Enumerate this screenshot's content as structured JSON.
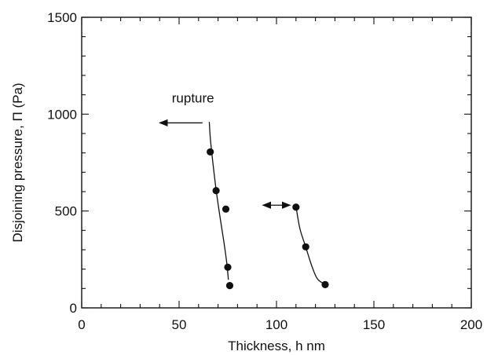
{
  "chart_data": {
    "type": "scatter",
    "xlabel": "Thickness, h nm",
    "ylabel": "Disjoining pressure, Π (Pa)",
    "xlim": [
      0,
      200
    ],
    "ylim": [
      0,
      1500
    ],
    "x_ticks": [
      {
        "value": 0,
        "label": "0"
      },
      {
        "value": 50,
        "label": "50"
      },
      {
        "value": 100,
        "label": "100"
      },
      {
        "value": 150,
        "label": "150"
      },
      {
        "value": 200,
        "label": "200"
      }
    ],
    "y_ticks": [
      {
        "value": 0,
        "label": "0"
      },
      {
        "value": 500,
        "label": "500"
      },
      {
        "value": 1000,
        "label": "1000"
      },
      {
        "value": 1500,
        "label": "1500"
      }
    ],
    "x_minor_step": 10,
    "y_minor_step": 100,
    "series": [
      {
        "points": [
          [
            66,
            805
          ],
          [
            69,
            605
          ],
          [
            74,
            510
          ],
          [
            75,
            210
          ],
          [
            76,
            115
          ]
        ],
        "curve": [
          [
            65.5,
            960
          ],
          [
            66,
            880
          ],
          [
            67,
            780
          ],
          [
            69,
            610
          ],
          [
            71,
            470
          ],
          [
            73,
            340
          ],
          [
            74.5,
            230
          ],
          [
            75.3,
            145
          ]
        ]
      },
      {
        "points": [
          [
            110,
            520
          ],
          [
            115,
            315
          ],
          [
            125,
            120
          ]
        ],
        "curve": [
          [
            110,
            525
          ],
          [
            112,
            410
          ],
          [
            115,
            315
          ],
          [
            118,
            220
          ],
          [
            121,
            150
          ],
          [
            125,
            120
          ]
        ]
      }
    ],
    "annotations": [
      {
        "text": "rupture",
        "x": 68,
        "y": 1085
      },
      {
        "arrow_from": [
          62,
          955
        ],
        "arrow_to": [
          40,
          955
        ],
        "heads": [
          "end"
        ]
      },
      {
        "arrow_from": [
          93,
          530
        ],
        "arrow_to": [
          107,
          530
        ],
        "heads": [
          "start",
          "end"
        ]
      }
    ],
    "grid": false
  }
}
